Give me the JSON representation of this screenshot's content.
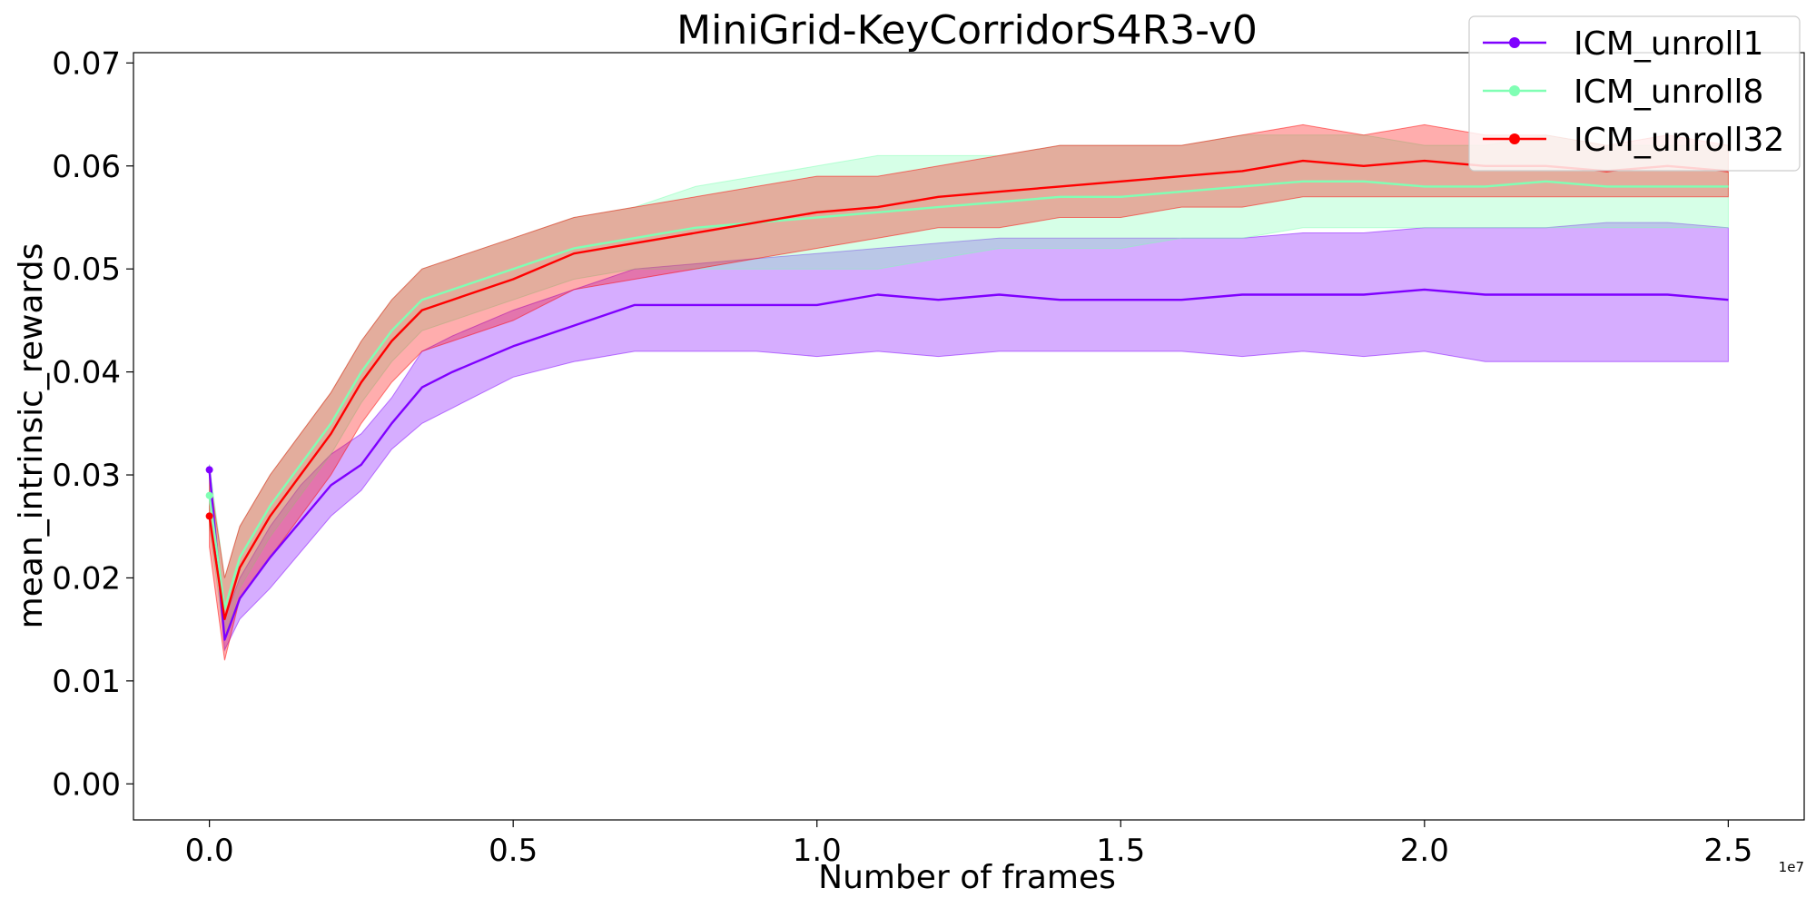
{
  "chart_data": {
    "type": "line",
    "title": "MiniGrid-KeyCorridorS4R3-v0",
    "xlabel": "Number of frames",
    "ylabel": "mean_intrinsic_rewards",
    "x_offset_label": "1e7",
    "xlim": [
      -0.125,
      2.625
    ],
    "ylim": [
      -0.0035,
      0.071
    ],
    "xticks": [
      0.0,
      0.5,
      1.0,
      1.5,
      2.0,
      2.5
    ],
    "xtick_labels": [
      "0.0",
      "0.5",
      "1.0",
      "1.5",
      "2.0",
      "2.5"
    ],
    "yticks": [
      0.0,
      0.01,
      0.02,
      0.03,
      0.04,
      0.05,
      0.06,
      0.07
    ],
    "ytick_labels": [
      "0.00",
      "0.01",
      "0.02",
      "0.03",
      "0.04",
      "0.05",
      "0.06",
      "0.07"
    ],
    "grid": false,
    "legend_position": "top-right",
    "x": [
      0.0,
      0.025,
      0.05,
      0.1,
      0.15,
      0.2,
      0.25,
      0.3,
      0.35,
      0.4,
      0.5,
      0.6,
      0.7,
      0.8,
      0.9,
      1.0,
      1.1,
      1.2,
      1.3,
      1.4,
      1.5,
      1.6,
      1.7,
      1.8,
      1.9,
      2.0,
      2.1,
      2.2,
      2.3,
      2.4,
      2.5
    ],
    "series": [
      {
        "name": "ICM_unroll1",
        "color": "#7f00ff",
        "values": [
          0.0305,
          0.014,
          0.018,
          0.022,
          0.0255,
          0.029,
          0.031,
          0.035,
          0.0385,
          0.04,
          0.0425,
          0.0445,
          0.0465,
          0.0465,
          0.0465,
          0.0465,
          0.0475,
          0.047,
          0.0475,
          0.047,
          0.047,
          0.047,
          0.0475,
          0.0475,
          0.0475,
          0.048,
          0.0475,
          0.0475,
          0.0475,
          0.0475,
          0.047
        ],
        "lower": [
          0.03,
          0.013,
          0.016,
          0.019,
          0.0225,
          0.026,
          0.0285,
          0.0325,
          0.035,
          0.0365,
          0.0395,
          0.041,
          0.042,
          0.042,
          0.042,
          0.0415,
          0.042,
          0.0415,
          0.042,
          0.042,
          0.042,
          0.042,
          0.0415,
          0.042,
          0.0415,
          0.042,
          0.041,
          0.041,
          0.041,
          0.041,
          0.041
        ],
        "upper": [
          0.031,
          0.016,
          0.02,
          0.025,
          0.029,
          0.032,
          0.034,
          0.0375,
          0.042,
          0.0435,
          0.046,
          0.048,
          0.05,
          0.0505,
          0.051,
          0.0515,
          0.052,
          0.0525,
          0.053,
          0.053,
          0.053,
          0.053,
          0.053,
          0.0535,
          0.0535,
          0.054,
          0.054,
          0.054,
          0.0545,
          0.0545,
          0.054
        ]
      },
      {
        "name": "ICM_unroll8",
        "color": "#80ffb4",
        "values": [
          0.028,
          0.017,
          0.022,
          0.027,
          0.031,
          0.035,
          0.04,
          0.044,
          0.047,
          0.048,
          0.05,
          0.052,
          0.053,
          0.054,
          0.0545,
          0.055,
          0.0555,
          0.056,
          0.0565,
          0.057,
          0.057,
          0.0575,
          0.058,
          0.0585,
          0.0585,
          0.058,
          0.058,
          0.0585,
          0.058,
          0.058,
          0.058
        ],
        "lower": [
          0.025,
          0.014,
          0.019,
          0.024,
          0.028,
          0.032,
          0.037,
          0.041,
          0.044,
          0.045,
          0.047,
          0.049,
          0.05,
          0.05,
          0.05,
          0.05,
          0.05,
          0.051,
          0.052,
          0.052,
          0.052,
          0.053,
          0.053,
          0.054,
          0.054,
          0.054,
          0.054,
          0.054,
          0.054,
          0.054,
          0.054
        ],
        "upper": [
          0.031,
          0.02,
          0.025,
          0.03,
          0.034,
          0.038,
          0.043,
          0.047,
          0.05,
          0.051,
          0.053,
          0.055,
          0.056,
          0.058,
          0.059,
          0.06,
          0.061,
          0.061,
          0.061,
          0.062,
          0.062,
          0.062,
          0.063,
          0.063,
          0.063,
          0.062,
          0.062,
          0.063,
          0.062,
          0.062,
          0.062
        ]
      },
      {
        "name": "ICM_unroll32",
        "color": "#ff0000",
        "values": [
          0.026,
          0.016,
          0.021,
          0.026,
          0.03,
          0.034,
          0.039,
          0.043,
          0.046,
          0.047,
          0.049,
          0.0515,
          0.0525,
          0.0535,
          0.0545,
          0.0555,
          0.056,
          0.057,
          0.0575,
          0.058,
          0.0585,
          0.059,
          0.0595,
          0.0605,
          0.06,
          0.0605,
          0.06,
          0.06,
          0.0595,
          0.06,
          0.0595
        ],
        "lower": [
          0.023,
          0.012,
          0.018,
          0.022,
          0.026,
          0.03,
          0.035,
          0.039,
          0.042,
          0.043,
          0.045,
          0.048,
          0.049,
          0.05,
          0.051,
          0.052,
          0.053,
          0.054,
          0.054,
          0.055,
          0.055,
          0.056,
          0.056,
          0.057,
          0.057,
          0.057,
          0.057,
          0.057,
          0.057,
          0.057,
          0.057
        ],
        "upper": [
          0.03,
          0.02,
          0.025,
          0.03,
          0.034,
          0.038,
          0.043,
          0.047,
          0.05,
          0.051,
          0.053,
          0.055,
          0.056,
          0.057,
          0.058,
          0.059,
          0.059,
          0.06,
          0.061,
          0.062,
          0.062,
          0.062,
          0.063,
          0.064,
          0.063,
          0.064,
          0.063,
          0.063,
          0.062,
          0.063,
          0.062
        ]
      }
    ]
  }
}
